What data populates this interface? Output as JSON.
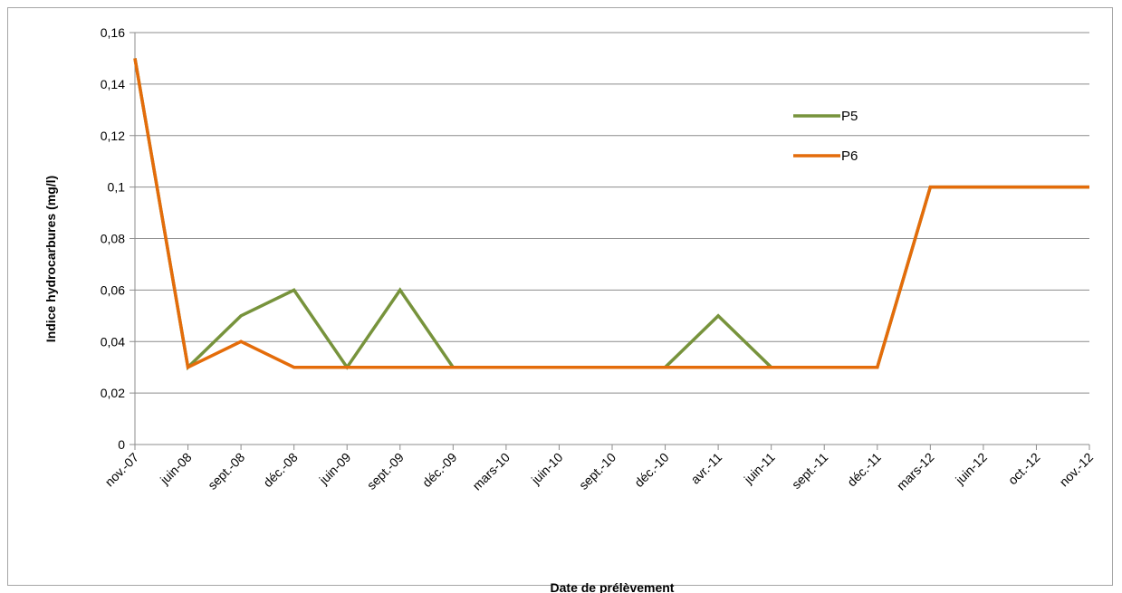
{
  "chart_data": {
    "type": "line",
    "title": "",
    "xlabel": "Date de prélèvement",
    "ylabel": "Indice hydrocarbures  (mg/l)",
    "ylim": [
      0,
      0.16
    ],
    "ytick_values": [
      0,
      0.02,
      0.04,
      0.06,
      0.08,
      0.1,
      0.12,
      0.14,
      0.16
    ],
    "ytick_labels": [
      "0",
      "0,02",
      "0,04",
      "0,06",
      "0,08",
      "0,1",
      "0,12",
      "0,14",
      "0,16"
    ],
    "grid": true,
    "legend_position": "upper-right inside plot",
    "categories": [
      "nov.-07",
      "juin-08",
      "sept.-08",
      "déc.-08",
      "juin-09",
      "sept.-09",
      "déc.-09",
      "mars-10",
      "juin-10",
      "sept.-10",
      "déc.-10",
      "avr.-11",
      "juin-11",
      "sept.-11",
      "déc.-11",
      "mars-12",
      "juin-12",
      "oct.-12",
      "nov.-12"
    ],
    "series": [
      {
        "name": "P5",
        "color": "#77933c",
        "values": [
          0.15,
          0.03,
          0.05,
          0.06,
          0.03,
          0.06,
          0.03,
          0.03,
          0.03,
          0.03,
          0.03,
          0.05,
          0.03,
          0.03,
          0.03,
          0.1,
          0.1,
          0.1,
          0.1
        ]
      },
      {
        "name": "P6",
        "color": "#e46c0a",
        "values": [
          0.15,
          0.03,
          0.04,
          0.03,
          0.03,
          0.03,
          0.03,
          0.03,
          0.03,
          0.03,
          0.03,
          0.03,
          0.03,
          0.03,
          0.03,
          0.1,
          0.1,
          0.1,
          0.1
        ]
      }
    ]
  }
}
